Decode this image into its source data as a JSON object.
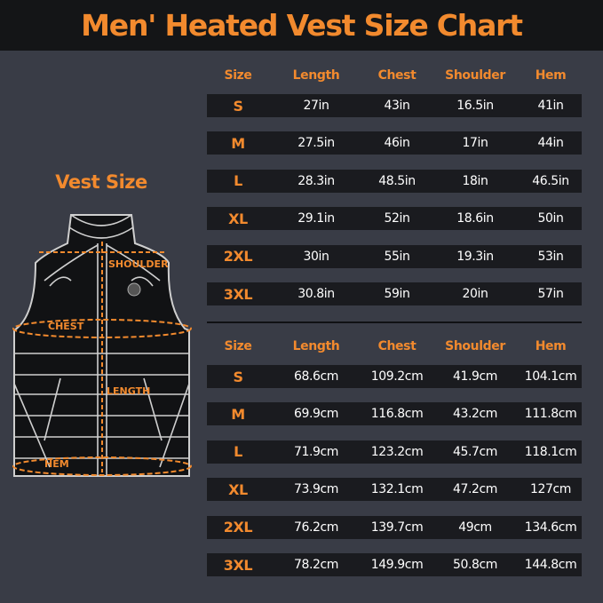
{
  "title": "Men' Heated Vest Size Chart",
  "vest": {
    "label": "Vest Size",
    "shoulder": "SHOULDER",
    "chest": "CHEST",
    "length": "LENGTH",
    "hem": "HEM"
  },
  "colors": {
    "accent": "#f28a2e",
    "background": "#393c46",
    "header": "#141517",
    "row": "#1a1b1f"
  },
  "headers": [
    "Size",
    "Length",
    "Chest",
    "Shoulder",
    "Hem"
  ],
  "inches": [
    [
      "S",
      "27in",
      "43in",
      "16.5in",
      "41in"
    ],
    [
      "M",
      "27.5in",
      "46in",
      "17in",
      "44in"
    ],
    [
      "L",
      "28.3in",
      "48.5in",
      "18in",
      "46.5in"
    ],
    [
      "XL",
      "29.1in",
      "52in",
      "18.6in",
      "50in"
    ],
    [
      "2XL",
      "30in",
      "55in",
      "19.3in",
      "53in"
    ],
    [
      "3XL",
      "30.8in",
      "59in",
      "20in",
      "57in"
    ]
  ],
  "cm": [
    [
      "S",
      "68.6cm",
      "109.2cm",
      "41.9cm",
      "104.1cm"
    ],
    [
      "M",
      "69.9cm",
      "116.8cm",
      "43.2cm",
      "111.8cm"
    ],
    [
      "L",
      "71.9cm",
      "123.2cm",
      "45.7cm",
      "118.1cm"
    ],
    [
      "XL",
      "73.9cm",
      "132.1cm",
      "47.2cm",
      "127cm"
    ],
    [
      "2XL",
      "76.2cm",
      "139.7cm",
      "49cm",
      "134.6cm"
    ],
    [
      "3XL",
      "78.2cm",
      "149.9cm",
      "50.8cm",
      "144.8cm"
    ]
  ]
}
